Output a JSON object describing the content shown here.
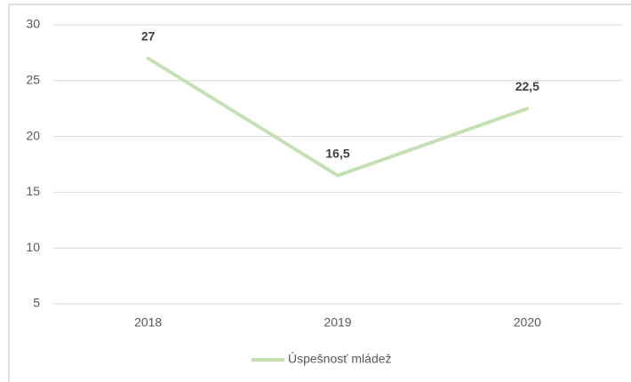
{
  "chart_data": {
    "type": "line",
    "categories": [
      "2018",
      "2019",
      "2020"
    ],
    "series": [
      {
        "name": "Úspešnosť mládež",
        "color": "#c5e0b4",
        "values": [
          27,
          16.5,
          22.5
        ],
        "value_labels": [
          "27",
          "16,5",
          "22,5"
        ]
      }
    ],
    "ylim": [
      5,
      30
    ],
    "yticks": [
      5,
      10,
      15,
      20,
      25,
      30
    ],
    "grid": true,
    "legend": "bottom"
  }
}
